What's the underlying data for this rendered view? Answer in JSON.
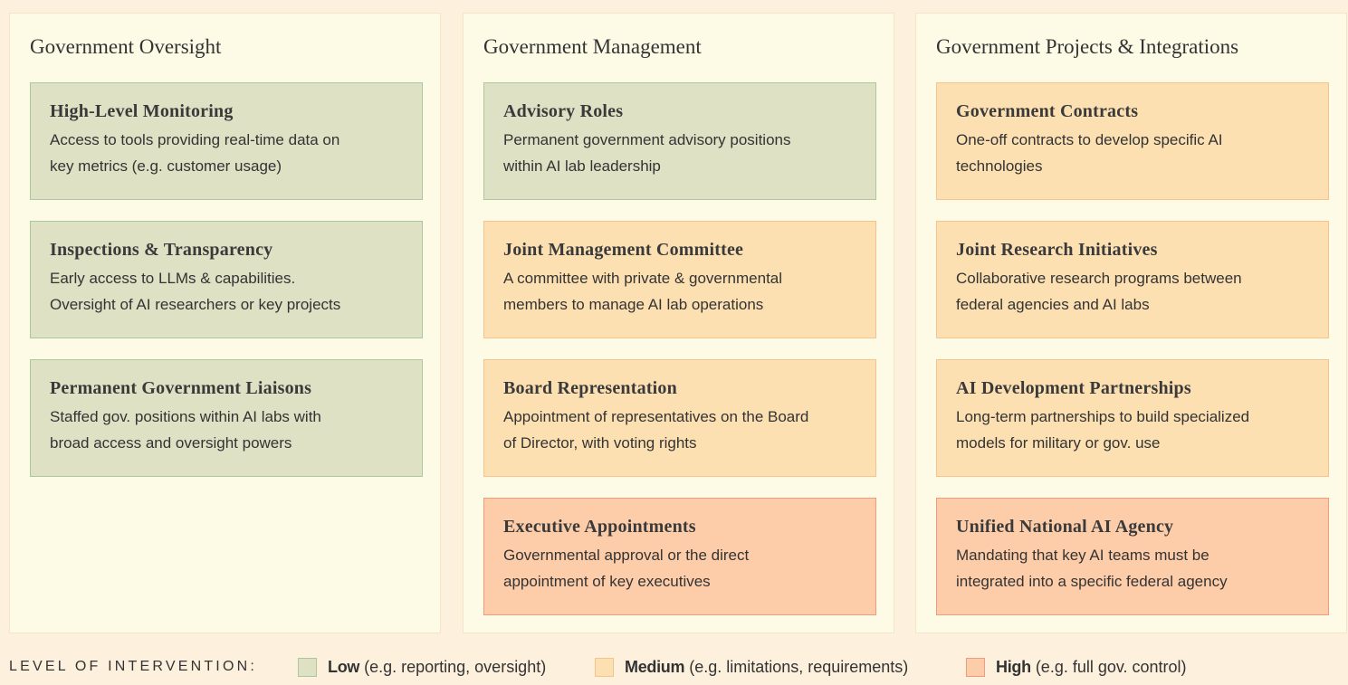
{
  "columns": [
    {
      "title": "Government Oversight",
      "cards": [
        {
          "title": "High-Level Monitoring",
          "lines": [
            "Access to tools providing real-time data on",
            "key metrics (e.g. customer usage)"
          ],
          "color": "#dfe1c4",
          "border": "#abc79d"
        },
        {
          "title": "Inspections & Transparency",
          "lines": [
            "Early access to LLMs & capabilities.",
            "Oversight of AI researchers or key projects"
          ],
          "color": "#dfe1c4",
          "border": "#abc79d"
        },
        {
          "title": "Permanent Government Liaisons",
          "lines": [
            "Staffed gov. positions within AI labs with",
            "broad access and oversight powers"
          ],
          "color": "#dfe1c4",
          "border": "#abc79d"
        }
      ]
    },
    {
      "title": "Government Management",
      "cards": [
        {
          "title": "Advisory Roles",
          "lines": [
            "Permanent government advisory positions",
            "within AI lab leadership"
          ],
          "color": "#dfe1c4",
          "border": "#abc79d"
        },
        {
          "title": "Joint Management Committee",
          "lines": [
            "A committee with private & governmental",
            "members to manage AI lab operations"
          ],
          "color": "#fde0b2",
          "border": "#f5c48e"
        },
        {
          "title": "Board Representation",
          "lines": [
            "Appointment of representatives on the Board",
            "of Director, with voting rights"
          ],
          "color": "#fde0b2",
          "border": "#f5c48e"
        },
        {
          "title": "Executive Appointments",
          "lines": [
            "Governmental approval or the direct",
            "appointment of key executives"
          ],
          "color": "#fdcdaa",
          "border": "#ef9b7d"
        }
      ]
    },
    {
      "title": "Government Projects & Integrations",
      "cards": [
        {
          "title": "Government Contracts",
          "lines": [
            "One-off contracts to develop specific AI",
            "technologies"
          ],
          "color": "#fde0b2",
          "border": "#f5c48e"
        },
        {
          "title": "Joint Research Initiatives",
          "lines": [
            "Collaborative research programs between",
            "federal agencies and AI labs"
          ],
          "color": "#fde0b2",
          "border": "#f5c48e"
        },
        {
          "title": "AI Development Partnerships",
          "lines": [
            "Long-term partnerships to build specialized",
            "models for military or gov. use"
          ],
          "color": "#fde0b2",
          "border": "#f5c48e"
        },
        {
          "title": "Unified National AI Agency",
          "lines": [
            "Mandating that key AI teams must be",
            "integrated into a specific federal agency"
          ],
          "color": "#fdcdaa",
          "border": "#ef9b7d"
        }
      ]
    }
  ],
  "legend": {
    "label": "LEVEL OF INTERVENTION:",
    "items": [
      {
        "name": "Low",
        "text": "(e.g. reporting, oversight)",
        "color": "#dfe1c4",
        "border": "#abc79d"
      },
      {
        "name": "Medium",
        "text": "(e.g. limitations, requirements)",
        "color": "#fde0b2",
        "border": "#f5c48e"
      },
      {
        "name": "High",
        "text": "(e.g. full gov. control)",
        "color": "#fdcdaa",
        "border": "#ef9b7d"
      }
    ]
  }
}
